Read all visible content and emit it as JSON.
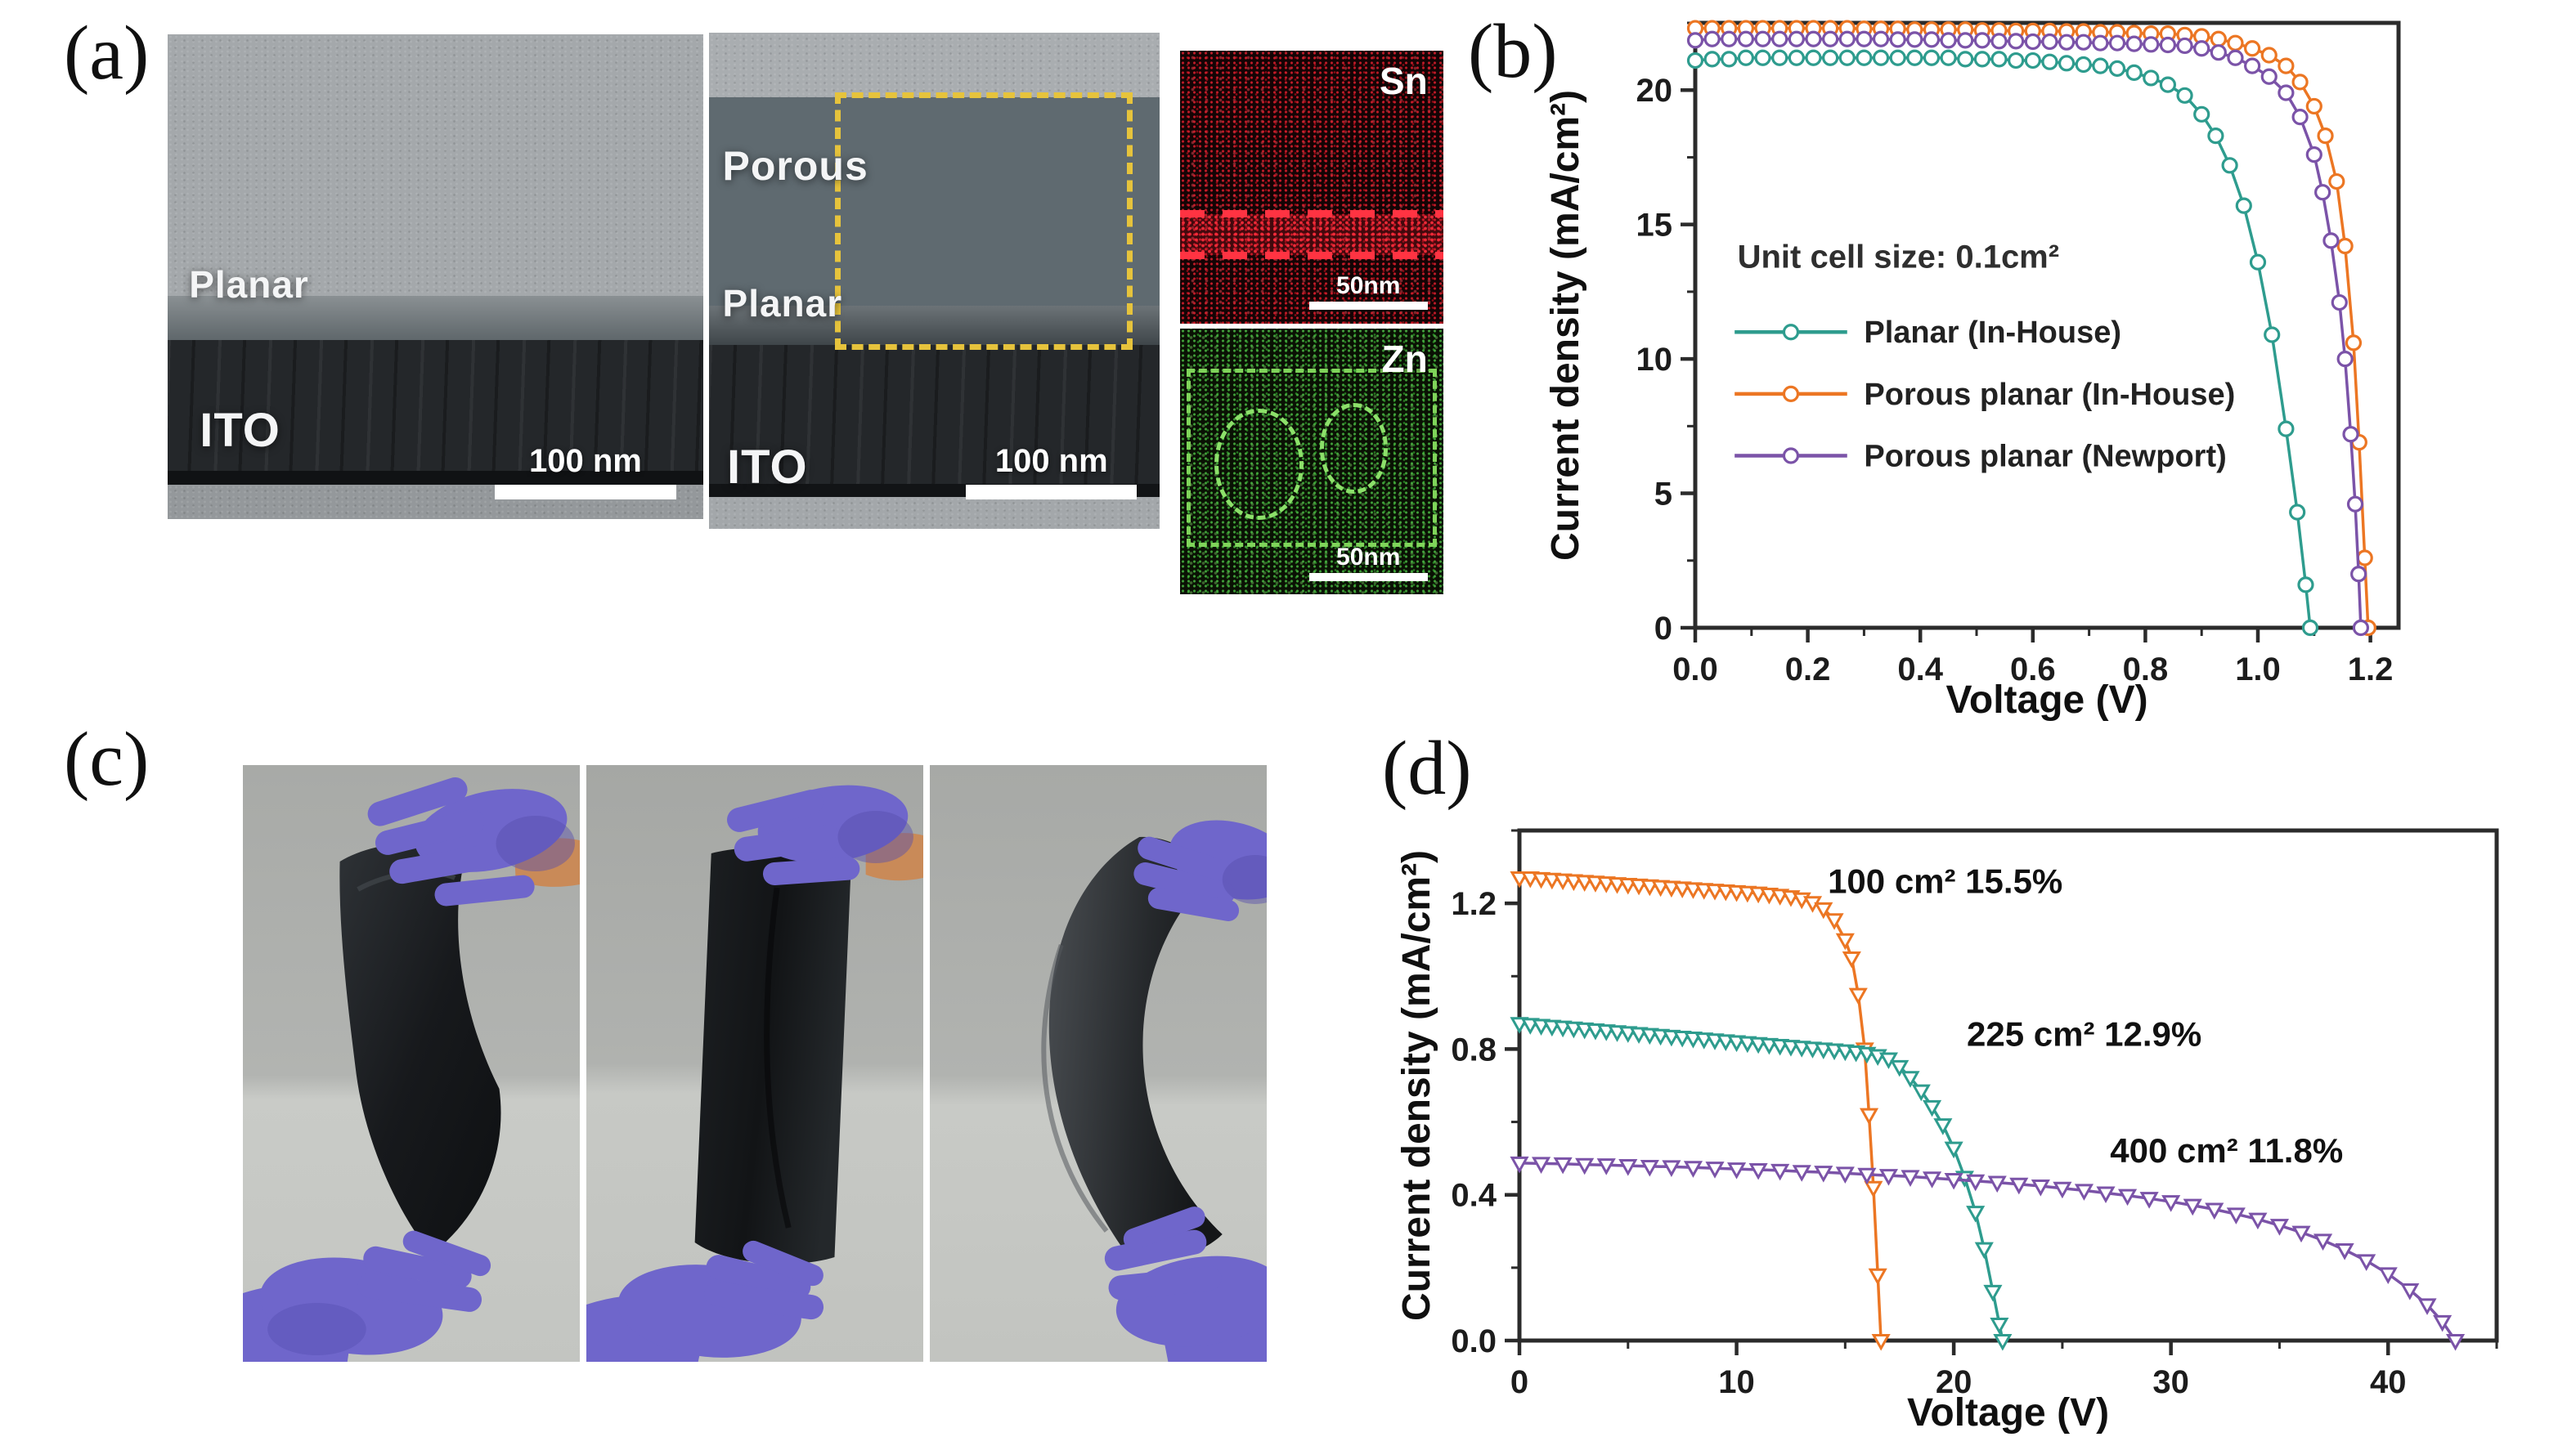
{
  "colors": {
    "teal": "#2e9c8e",
    "orange": "#ec7623",
    "purple": "#7b53a8",
    "glove": "#6f66cb",
    "glove-dark": "#564dae",
    "skin": "#c98a58",
    "yellow-dash": "#e6c33c",
    "sn-red": "#ff3342",
    "zn-green": "#7fd45a",
    "axis": "#2b2b2b"
  },
  "panel_a": {
    "label": "(a)",
    "tem_planar": {
      "layer": "Planar",
      "substrate": "ITO",
      "scalebar": "100 nm"
    },
    "tem_porous": {
      "top": "Porous",
      "mid": "Planar",
      "substrate": "ITO",
      "scalebar": "100 nm"
    },
    "eds_sn": {
      "element": "Sn",
      "scalebar": "50nm"
    },
    "eds_zn": {
      "element": "Zn",
      "scalebar": "50nm"
    }
  },
  "panel_b": {
    "label": "(b)"
  },
  "panel_c": {
    "label": "(c)"
  },
  "panel_d": {
    "label": "(d)"
  },
  "chart_data": [
    {
      "panel": "b",
      "type": "line",
      "title": "",
      "xlabel": "Voltage (V)",
      "ylabel": "Current density (mA/cm²)",
      "xlim": [
        0,
        1.25
      ],
      "ylim": [
        0,
        22.5
      ],
      "xticks": [
        0,
        0.2,
        0.4,
        0.6,
        0.8,
        1.0,
        1.2
      ],
      "xtick_labels": [
        "0.0",
        "0.2",
        "0.4",
        "0.6",
        "0.8",
        "1.0",
        "1.2"
      ],
      "yticks": [
        0,
        5,
        10,
        15,
        20
      ],
      "ytick_labels": [
        "0",
        "5",
        "10",
        "15",
        "20"
      ],
      "xminor": 0.1,
      "yminor": 2.5,
      "grid": false,
      "legend": {
        "title": "Unit cell size: 0.1cm²",
        "title_x": 0.075,
        "title_y": 13.4,
        "line_x": [
          0.07,
          0.27
        ],
        "label_x": 0.3,
        "items_y": [
          11.0,
          8.7,
          6.4
        ],
        "position": "center-left"
      },
      "series": [
        {
          "name": "Planar (In-House)",
          "color": "#2e9c8e",
          "marker": "circle",
          "x": [
            0,
            0.03,
            0.06,
            0.09,
            0.12,
            0.15,
            0.18,
            0.21,
            0.24,
            0.27,
            0.3,
            0.33,
            0.36,
            0.39,
            0.42,
            0.45,
            0.48,
            0.51,
            0.54,
            0.57,
            0.6,
            0.63,
            0.66,
            0.69,
            0.72,
            0.75,
            0.78,
            0.81,
            0.84,
            0.87,
            0.9,
            0.925,
            0.95,
            0.975,
            1.0,
            1.025,
            1.05,
            1.07,
            1.085,
            1.093
          ],
          "y": [
            21.1,
            21.15,
            21.15,
            21.2,
            21.2,
            21.2,
            21.2,
            21.2,
            21.2,
            21.2,
            21.2,
            21.2,
            21.2,
            21.2,
            21.2,
            21.2,
            21.15,
            21.15,
            21.15,
            21.1,
            21.1,
            21.05,
            21.0,
            20.95,
            20.9,
            20.8,
            20.65,
            20.45,
            20.2,
            19.8,
            19.1,
            18.3,
            17.2,
            15.7,
            13.6,
            10.9,
            7.4,
            4.3,
            1.6,
            0
          ]
        },
        {
          "name": "Porous planar (In-House)",
          "color": "#ec7623",
          "marker": "circle",
          "x": [
            0,
            0.03,
            0.06,
            0.09,
            0.12,
            0.15,
            0.18,
            0.21,
            0.24,
            0.27,
            0.3,
            0.33,
            0.36,
            0.39,
            0.42,
            0.45,
            0.48,
            0.51,
            0.54,
            0.57,
            0.6,
            0.63,
            0.66,
            0.69,
            0.72,
            0.75,
            0.78,
            0.81,
            0.84,
            0.87,
            0.9,
            0.93,
            0.96,
            0.99,
            1.02,
            1.05,
            1.075,
            1.1,
            1.12,
            1.14,
            1.155,
            1.17,
            1.18,
            1.19,
            1.196
          ],
          "y": [
            22.3,
            22.3,
            22.3,
            22.3,
            22.3,
            22.3,
            22.3,
            22.3,
            22.3,
            22.3,
            22.28,
            22.28,
            22.28,
            22.25,
            22.25,
            22.25,
            22.25,
            22.22,
            22.22,
            22.2,
            22.2,
            22.2,
            22.18,
            22.18,
            22.15,
            22.15,
            22.12,
            22.1,
            22.1,
            22.05,
            22.0,
            21.9,
            21.75,
            21.55,
            21.3,
            20.9,
            20.3,
            19.4,
            18.3,
            16.6,
            14.2,
            10.6,
            6.9,
            2.6,
            0
          ]
        },
        {
          "name": "Porous planar (Newport)",
          "color": "#7b53a8",
          "marker": "circle",
          "x": [
            0,
            0.03,
            0.06,
            0.09,
            0.12,
            0.15,
            0.18,
            0.21,
            0.24,
            0.27,
            0.3,
            0.33,
            0.36,
            0.39,
            0.42,
            0.45,
            0.48,
            0.51,
            0.54,
            0.57,
            0.6,
            0.63,
            0.66,
            0.69,
            0.72,
            0.75,
            0.78,
            0.81,
            0.84,
            0.87,
            0.9,
            0.93,
            0.96,
            0.99,
            1.02,
            1.05,
            1.075,
            1.1,
            1.115,
            1.13,
            1.145,
            1.155,
            1.165,
            1.173,
            1.179,
            1.183
          ],
          "y": [
            21.85,
            21.9,
            21.9,
            21.9,
            21.9,
            21.9,
            21.9,
            21.9,
            21.9,
            21.9,
            21.9,
            21.9,
            21.88,
            21.88,
            21.88,
            21.85,
            21.85,
            21.85,
            21.82,
            21.82,
            21.8,
            21.8,
            21.78,
            21.78,
            21.75,
            21.75,
            21.72,
            21.7,
            21.68,
            21.65,
            21.55,
            21.4,
            21.2,
            20.9,
            20.5,
            19.9,
            19.0,
            17.6,
            16.2,
            14.4,
            12.1,
            10.0,
            7.2,
            4.6,
            2.0,
            0
          ]
        }
      ]
    },
    {
      "panel": "d",
      "type": "line",
      "title": "",
      "xlabel": "Voltage (V)",
      "ylabel": "Current density (mA/cm²)",
      "xlim": [
        0,
        45
      ],
      "ylim": [
        0,
        1.4
      ],
      "xticks": [
        0,
        10,
        20,
        30,
        40
      ],
      "xtick_labels": [
        "0",
        "10",
        "20",
        "30",
        "40"
      ],
      "yticks": [
        0,
        0.4,
        0.8,
        1.2
      ],
      "ytick_labels": [
        "0.0",
        "0.4",
        "0.8",
        "1.2"
      ],
      "xminor": 5,
      "yminor": 0.2,
      "grid": false,
      "annotations": [
        {
          "text": "100 cm² 15.5%",
          "x": 14.2,
          "y": 1.26
        },
        {
          "text": "225 cm² 12.9%",
          "x": 20.6,
          "y": 0.84
        },
        {
          "text": "400 cm² 11.8%",
          "x": 27.2,
          "y": 0.52
        }
      ],
      "series": [
        {
          "name": "100 cm² module (15.5%)",
          "color": "#ec7623",
          "marker": "triangle-down",
          "x": [
            0,
            0.5,
            1,
            1.5,
            2,
            2.5,
            3,
            3.5,
            4,
            4.5,
            5,
            5.5,
            6,
            6.5,
            7,
            7.5,
            8,
            8.5,
            9,
            9.5,
            10,
            10.5,
            11,
            11.5,
            12,
            12.5,
            13,
            13.5,
            14,
            14.5,
            15,
            15.3,
            15.6,
            15.9,
            16.1,
            16.3,
            16.5,
            16.65
          ],
          "y": [
            1.27,
            1.27,
            1.268,
            1.266,
            1.264,
            1.262,
            1.26,
            1.258,
            1.256,
            1.254,
            1.252,
            1.25,
            1.248,
            1.246,
            1.244,
            1.242,
            1.24,
            1.238,
            1.236,
            1.234,
            1.232,
            1.23,
            1.228,
            1.225,
            1.222,
            1.218,
            1.212,
            1.202,
            1.185,
            1.155,
            1.1,
            1.05,
            0.95,
            0.8,
            0.62,
            0.42,
            0.18,
            0
          ]
        },
        {
          "name": "225 cm² module (12.9%)",
          "color": "#2e9c8e",
          "marker": "triangle-down",
          "x": [
            0,
            0.5,
            1,
            1.5,
            2,
            2.5,
            3,
            3.5,
            4,
            4.5,
            5,
            5.5,
            6,
            6.5,
            7,
            7.5,
            8,
            8.5,
            9,
            9.5,
            10,
            10.5,
            11,
            11.5,
            12,
            12.5,
            13,
            13.5,
            14,
            14.5,
            15,
            15.5,
            16,
            16.5,
            17,
            17.5,
            18,
            18.5,
            19,
            19.5,
            20,
            20.5,
            21,
            21.4,
            21.8,
            22.1,
            22.25
          ],
          "y": [
            0.87,
            0.8675,
            0.865,
            0.8625,
            0.86,
            0.8575,
            0.855,
            0.8525,
            0.85,
            0.8475,
            0.845,
            0.8425,
            0.84,
            0.8375,
            0.835,
            0.8325,
            0.83,
            0.8275,
            0.825,
            0.8225,
            0.82,
            0.8175,
            0.815,
            0.8125,
            0.81,
            0.8075,
            0.805,
            0.8025,
            0.8,
            0.7975,
            0.795,
            0.792,
            0.788,
            0.782,
            0.773,
            0.752,
            0.722,
            0.685,
            0.642,
            0.592,
            0.528,
            0.448,
            0.352,
            0.252,
            0.135,
            0.045,
            0
          ]
        },
        {
          "name": "400 cm² module (11.8%)",
          "color": "#7b53a8",
          "marker": "triangle-down",
          "x": [
            0,
            1,
            2,
            3,
            4,
            5,
            6,
            7,
            8,
            9,
            10,
            11,
            12,
            13,
            14,
            15,
            16,
            17,
            18,
            19,
            20,
            21,
            22,
            23,
            24,
            25,
            26,
            27,
            28,
            29,
            30,
            31,
            32,
            33,
            34,
            35,
            36,
            37,
            38,
            39,
            40,
            41,
            41.8,
            42.5,
            43.1
          ],
          "y": [
            0.487,
            0.486,
            0.485,
            0.483,
            0.482,
            0.48,
            0.478,
            0.477,
            0.475,
            0.473,
            0.471,
            0.469,
            0.467,
            0.464,
            0.462,
            0.459,
            0.456,
            0.453,
            0.45,
            0.446,
            0.442,
            0.438,
            0.434,
            0.429,
            0.424,
            0.418,
            0.412,
            0.405,
            0.398,
            0.39,
            0.381,
            0.371,
            0.36,
            0.347,
            0.333,
            0.316,
            0.297,
            0.275,
            0.249,
            0.219,
            0.183,
            0.139,
            0.098,
            0.052,
            0
          ]
        }
      ]
    }
  ]
}
